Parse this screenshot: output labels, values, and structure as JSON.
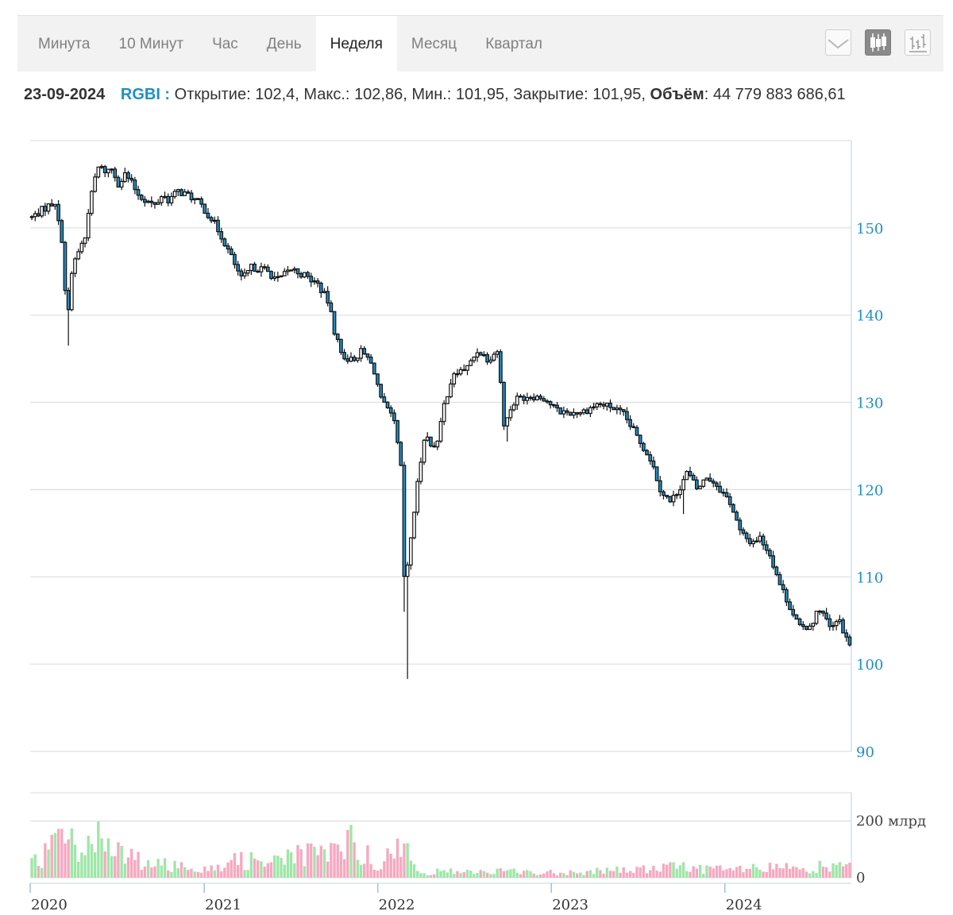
{
  "tabs": [
    {
      "label": "Минута",
      "active": false
    },
    {
      "label": "10 Минут",
      "active": false
    },
    {
      "label": "Час",
      "active": false
    },
    {
      "label": "День",
      "active": false
    },
    {
      "label": "Неделя",
      "active": true
    },
    {
      "label": "Месяц",
      "active": false
    },
    {
      "label": "Квартал",
      "active": false
    }
  ],
  "tools": [
    {
      "icon": "line-chart-icon",
      "active": false
    },
    {
      "icon": "candlestick-chart-icon",
      "active": true
    },
    {
      "icon": "ohlc-bars-icon",
      "active": false
    }
  ],
  "info": {
    "date": "23-09-2024",
    "ticker": "RGBI :",
    "open_label": "Открытие:",
    "open": "102,4",
    "high_label": "Макс.:",
    "high": "102,86",
    "low_label": "Мин.:",
    "low": "101,95",
    "close_label": "Закрытие:",
    "close": "101,95",
    "volume_label": "Объём",
    "volume": "44 779 883 686,61"
  },
  "colors": {
    "axis_labels": "#1f8fc4",
    "candle_fill": "#1f8fc4",
    "volume_up": "#9ee6a8",
    "volume_down": "#f7a8c0",
    "grid": "#e0e0e0"
  },
  "chart_data": {
    "type": "candlestick",
    "timeframe": "week",
    "price_axis": {
      "min": 90,
      "max": 160,
      "ticks": [
        90,
        100,
        110,
        120,
        130,
        140,
        150
      ],
      "tick_labels": [
        "90",
        "100",
        "110",
        "120",
        "130",
        "140",
        "150"
      ]
    },
    "volume_axis": {
      "min": 0,
      "max": 300,
      "ticks": [
        0,
        200
      ],
      "tick_labels": [
        "0",
        "200 млрд"
      ],
      "unit": "млрд"
    },
    "x_axis": {
      "start": "2020-01-01",
      "end": "2024-09-23",
      "ticks": [
        "2020-01-01",
        "2021-01-01",
        "2022-01-01",
        "2023-01-01",
        "2024-01-01"
      ],
      "tick_labels": [
        "2020",
        "2021",
        "2022",
        "2023",
        "2024"
      ]
    },
    "close_path": [
      [
        "2020-01-01",
        151.2
      ],
      [
        "2020-01-29",
        152.3
      ],
      [
        "2020-02-19",
        153.0
      ],
      [
        "2020-02-26",
        150.5
      ],
      [
        "2020-03-05",
        148.5
      ],
      [
        "2020-03-12",
        142.0
      ],
      [
        "2020-03-19",
        140.0
      ],
      [
        "2020-03-26",
        145.5
      ],
      [
        "2020-04-09",
        147.5
      ],
      [
        "2020-04-23",
        149.0
      ],
      [
        "2020-04-30",
        152.5
      ],
      [
        "2020-05-07",
        154.0
      ],
      [
        "2020-05-14",
        156.0
      ],
      [
        "2020-05-21",
        157.0
      ],
      [
        "2020-06-04",
        156.5
      ],
      [
        "2020-06-18",
        156.8
      ],
      [
        "2020-07-02",
        155.0
      ],
      [
        "2020-07-16",
        156.2
      ],
      [
        "2020-07-30",
        155.0
      ],
      [
        "2020-08-13",
        153.8
      ],
      [
        "2020-08-27",
        153.2
      ],
      [
        "2020-09-17",
        152.5
      ],
      [
        "2020-10-01",
        153.8
      ],
      [
        "2020-10-15",
        153.2
      ],
      [
        "2020-11-05",
        154.2
      ],
      [
        "2020-12-03",
        153.5
      ],
      [
        "2020-12-24",
        152.5
      ],
      [
        "2021-01-14",
        151.0
      ],
      [
        "2021-02-04",
        149.0
      ],
      [
        "2021-02-25",
        146.5
      ],
      [
        "2021-03-18",
        144.0
      ],
      [
        "2021-04-08",
        145.5
      ],
      [
        "2021-05-06",
        145.2
      ],
      [
        "2021-06-03",
        144.0
      ],
      [
        "2021-07-01",
        145.3
      ],
      [
        "2021-07-29",
        144.5
      ],
      [
        "2021-08-26",
        143.5
      ],
      [
        "2021-09-16",
        141.5
      ],
      [
        "2021-09-30",
        138.0
      ],
      [
        "2021-10-14",
        135.5
      ],
      [
        "2021-11-04",
        134.8
      ],
      [
        "2021-11-25",
        135.8
      ],
      [
        "2021-12-09",
        135.0
      ],
      [
        "2021-12-23",
        133.5
      ],
      [
        "2022-01-06",
        130.0
      ],
      [
        "2022-01-20",
        129.0
      ],
      [
        "2022-02-03",
        127.5
      ],
      [
        "2022-02-17",
        122.0
      ],
      [
        "2022-02-24",
        108.0
      ],
      [
        "2022-03-10",
        115.0
      ],
      [
        "2022-03-24",
        121.0
      ],
      [
        "2022-04-07",
        126.5
      ],
      [
        "2022-04-21",
        125.0
      ],
      [
        "2022-05-05",
        125.5
      ],
      [
        "2022-05-19",
        130.0
      ],
      [
        "2022-06-02",
        132.5
      ],
      [
        "2022-06-16",
        133.5
      ],
      [
        "2022-07-07",
        134.0
      ],
      [
        "2022-07-28",
        136.0
      ],
      [
        "2022-08-18",
        135.0
      ],
      [
        "2022-09-08",
        136.0
      ],
      [
        "2022-09-22",
        127.0
      ],
      [
        "2022-10-06",
        129.5
      ],
      [
        "2022-10-20",
        130.5
      ],
      [
        "2022-11-17",
        130.8
      ],
      [
        "2022-12-15",
        130.5
      ],
      [
        "2023-01-12",
        129.0
      ],
      [
        "2023-02-09",
        128.8
      ],
      [
        "2023-03-09",
        129.0
      ],
      [
        "2023-04-06",
        129.8
      ],
      [
        "2023-05-04",
        129.5
      ],
      [
        "2023-06-01",
        128.5
      ],
      [
        "2023-06-29",
        126.0
      ],
      [
        "2023-07-27",
        123.5
      ],
      [
        "2023-08-17",
        120.0
      ],
      [
        "2023-09-07",
        118.5
      ],
      [
        "2023-09-28",
        120.5
      ],
      [
        "2023-10-12",
        122.0
      ],
      [
        "2023-11-02",
        120.0
      ],
      [
        "2023-11-23",
        121.5
      ],
      [
        "2023-12-14",
        120.5
      ],
      [
        "2024-01-11",
        118.5
      ],
      [
        "2024-02-01",
        115.0
      ],
      [
        "2024-02-22",
        114.0
      ],
      [
        "2024-03-14",
        114.5
      ],
      [
        "2024-04-04",
        112.5
      ],
      [
        "2024-04-25",
        109.0
      ],
      [
        "2024-05-16",
        106.5
      ],
      [
        "2024-06-06",
        104.0
      ],
      [
        "2024-06-27",
        104.5
      ],
      [
        "2024-07-18",
        106.5
      ],
      [
        "2024-08-08",
        104.0
      ],
      [
        "2024-08-29",
        105.0
      ],
      [
        "2024-09-12",
        102.5
      ],
      [
        "2024-09-23",
        101.95
      ]
    ],
    "wicks": [
      {
        "date": "2020-03-19",
        "low": 136.5
      },
      {
        "date": "2022-03-03",
        "low": 98.3,
        "high": 109.5
      },
      {
        "date": "2022-02-24",
        "low": 106.0,
        "high": 121.0
      },
      {
        "date": "2022-09-29",
        "low": 125.5
      },
      {
        "date": "2023-10-05",
        "low": 117.2
      }
    ],
    "volume_profile": [
      [
        "2020-01-01",
        50
      ],
      [
        "2020-03-12",
        180
      ],
      [
        "2020-04-01",
        120
      ],
      [
        "2020-05-20",
        170
      ],
      [
        "2020-07-01",
        90
      ],
      [
        "2020-10-01",
        50
      ],
      [
        "2021-01-01",
        45
      ],
      [
        "2021-05-01",
        80
      ],
      [
        "2021-09-01",
        90
      ],
      [
        "2021-11-01",
        140
      ],
      [
        "2022-01-01",
        60
      ],
      [
        "2022-03-01",
        120
      ],
      [
        "2022-03-20",
        20
      ],
      [
        "2022-06-01",
        25
      ],
      [
        "2022-10-01",
        25
      ],
      [
        "2023-01-01",
        20
      ],
      [
        "2023-08-01",
        35
      ],
      [
        "2023-10-01",
        45
      ],
      [
        "2024-01-01",
        30
      ],
      [
        "2024-05-01",
        40
      ],
      [
        "2024-09-23",
        45
      ]
    ]
  }
}
